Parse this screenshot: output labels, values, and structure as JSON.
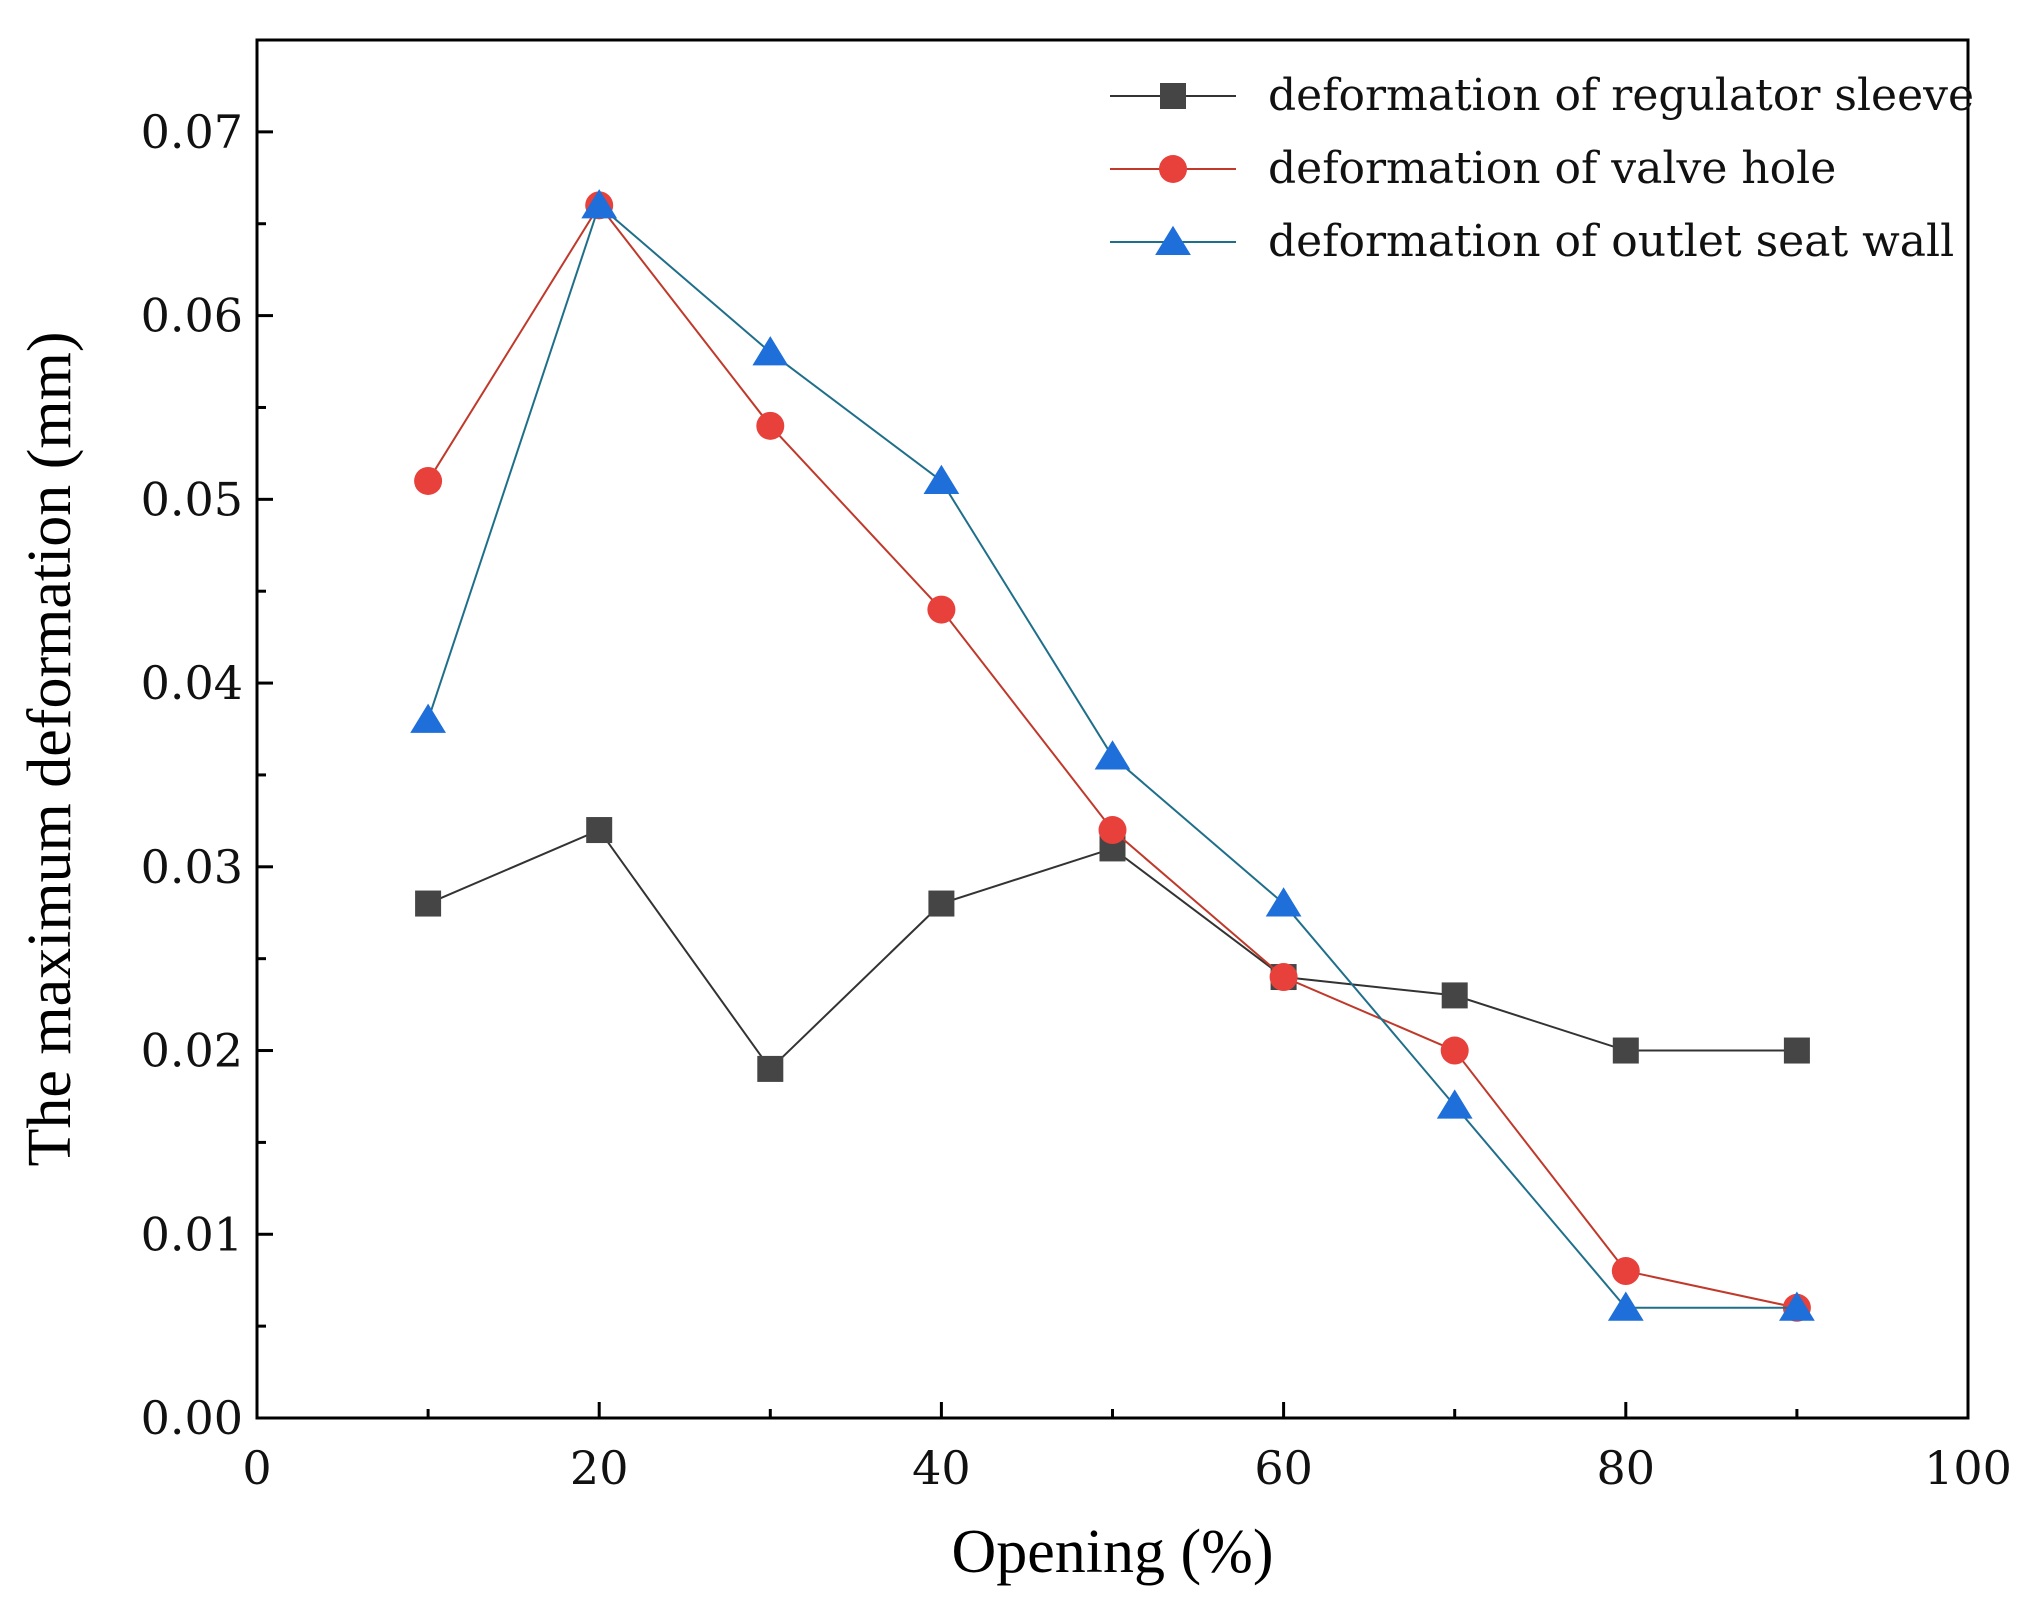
{
  "chart_data": {
    "type": "line",
    "title": "",
    "xlabel": "Opening (%)",
    "ylabel": "The maximum deformation (mm)",
    "xlim": [
      0,
      100
    ],
    "ylim": [
      0,
      0.075
    ],
    "xticks": [
      0,
      20,
      40,
      60,
      80,
      100
    ],
    "xtick_labels": [
      "0",
      "20",
      "40",
      "60",
      "80",
      "100"
    ],
    "yticks": [
      0,
      0.01,
      0.02,
      0.03,
      0.04,
      0.05,
      0.06,
      0.07
    ],
    "ytick_labels": [
      "0.00",
      "0.01",
      "0.02",
      "0.03",
      "0.04",
      "0.05",
      "0.06",
      "0.07"
    ],
    "grid": false,
    "legend_position": "top-right",
    "x": [
      10,
      20,
      30,
      40,
      50,
      60,
      70,
      80,
      90
    ],
    "series": [
      {
        "name": "deformation of regulator sleeve",
        "marker": "square",
        "color": "#454545",
        "line_color": "#333333",
        "values": [
          0.028,
          0.032,
          0.019,
          0.028,
          0.031,
          0.024,
          0.023,
          0.02,
          0.02
        ]
      },
      {
        "name": "deformation of valve hole",
        "marker": "circle",
        "color": "#e8403a",
        "line_color": "#c0392b",
        "values": [
          0.051,
          0.066,
          0.054,
          0.044,
          0.032,
          0.024,
          0.02,
          0.008,
          0.006
        ]
      },
      {
        "name": "deformation of outlet seat wall",
        "marker": "triangle",
        "color": "#1e6fd9",
        "line_color": "#1f6f8b",
        "values": [
          0.038,
          0.066,
          0.058,
          0.051,
          0.036,
          0.028,
          0.017,
          0.006,
          0.006
        ]
      }
    ]
  }
}
